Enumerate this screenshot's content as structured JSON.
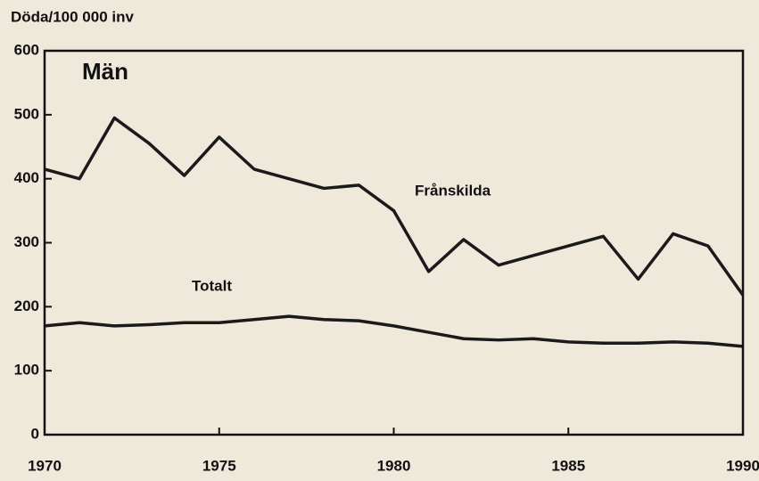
{
  "chart_data": {
    "type": "line",
    "title": "Män",
    "ylabel": "Döda/100 000 inv",
    "x": [
      1970,
      1971,
      1972,
      1973,
      1974,
      1975,
      1976,
      1977,
      1978,
      1979,
      1980,
      1981,
      1982,
      1983,
      1984,
      1985,
      1986,
      1987,
      1988,
      1989,
      1990
    ],
    "series": [
      {
        "name": "Frånskilda",
        "color": "#1a1a1a",
        "values": [
          415,
          400,
          495,
          455,
          405,
          465,
          415,
          400,
          385,
          390,
          350,
          255,
          305,
          265,
          280,
          295,
          310,
          243,
          314,
          295,
          218
        ]
      },
      {
        "name": "Totalt",
        "color": "#1a1a1a",
        "values": [
          170,
          175,
          170,
          172,
          175,
          175,
          180,
          185,
          180,
          178,
          170,
          160,
          150,
          148,
          150,
          145,
          143,
          143,
          145,
          143,
          138
        ]
      }
    ],
    "xlim": [
      1970,
      1990
    ],
    "xticks": [
      1970,
      1975,
      1980,
      1985,
      1990
    ],
    "ylim": [
      0,
      600
    ],
    "yticks": [
      0,
      100,
      200,
      300,
      400,
      500,
      600
    ]
  }
}
